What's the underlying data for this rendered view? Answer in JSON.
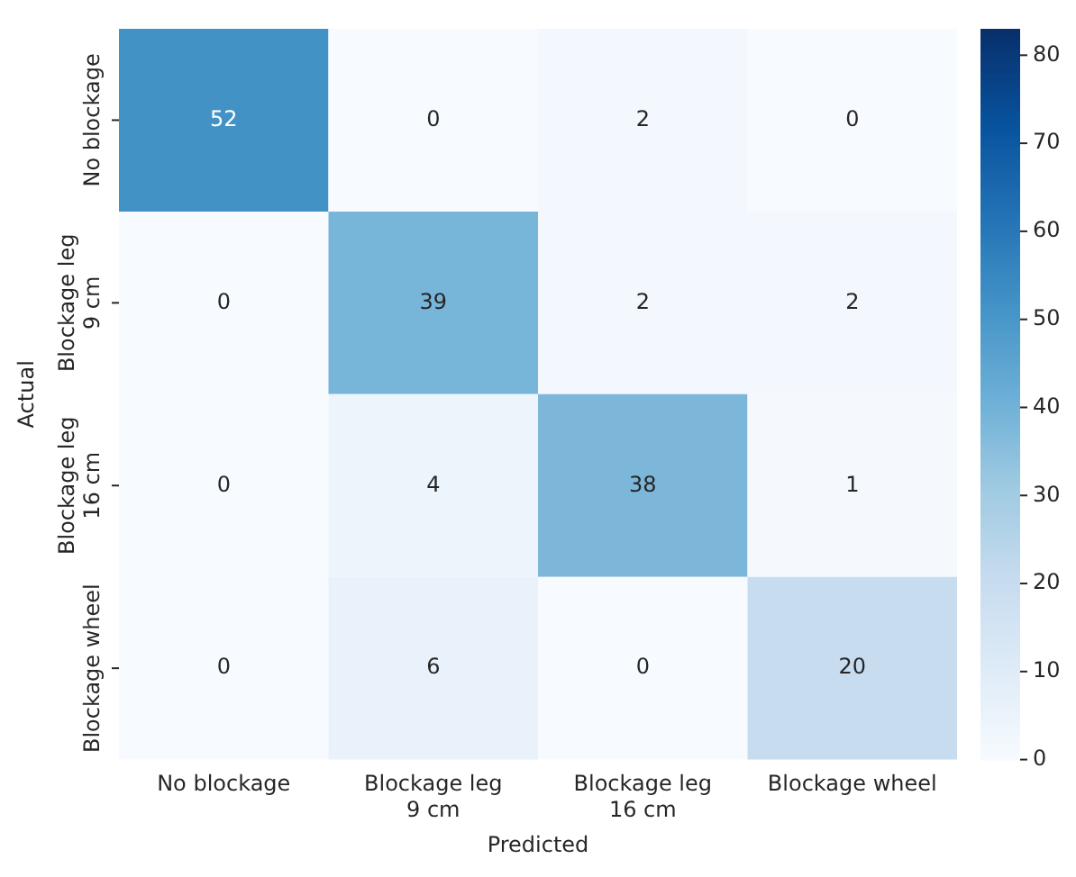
{
  "chart_data": {
    "type": "heatmap",
    "xlabel": "Predicted",
    "ylabel": "Actual",
    "categories": [
      "No blockage",
      "Blockage leg\n9 cm",
      "Blockage leg\n16 cm",
      "Blockage wheel"
    ],
    "y_categories": [
      "No blockage",
      "Blockage leg\n9 cm",
      "Blockage leg\n16 cm",
      "Blockage wheel"
    ],
    "cells": [
      [
        52,
        0,
        2,
        0
      ],
      [
        0,
        39,
        2,
        2
      ],
      [
        0,
        4,
        38,
        1
      ],
      [
        0,
        6,
        0,
        20
      ]
    ],
    "data_labels": true,
    "clim": [
      0,
      83
    ],
    "cticks": [
      0,
      10,
      20,
      30,
      40,
      50,
      60,
      70,
      80
    ]
  }
}
